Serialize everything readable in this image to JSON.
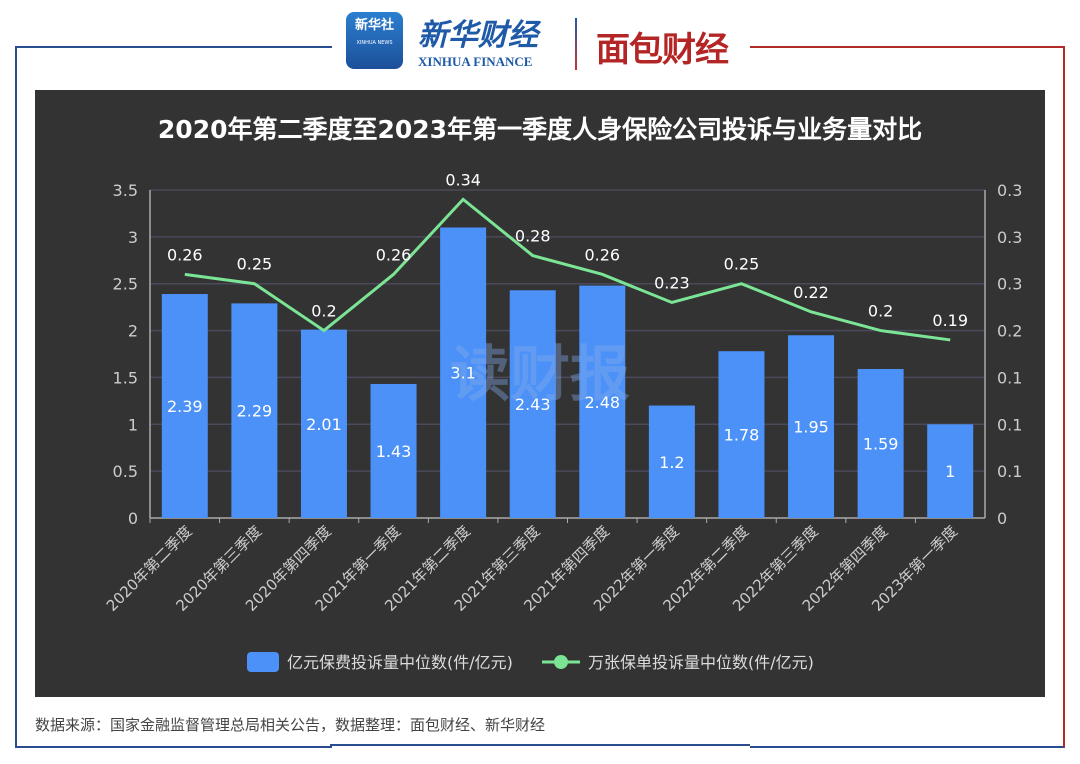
{
  "header": {
    "logo1_text": "新华社",
    "logo1_sub": "XINHUA NEWS",
    "logo2_text": "新华财经",
    "logo2_sub": "XINHUA FINANCE",
    "logo3_text": "面包财经"
  },
  "watermark": "读财报",
  "source": "数据来源：国家金融监督管理总局相关公告，数据整理：面包财经、新华财经",
  "chart_data": {
    "type": "bar",
    "title": "2020年第二季度至2023年第一季度人身保险公司投诉与业务量对比",
    "categories": [
      "2020年第二季度",
      "2020年第三季度",
      "2020年第四季度",
      "2021年第一季度",
      "2021年第二季度",
      "2021年第三季度",
      "2021年第四季度",
      "2022年第一季度",
      "2022年第二季度",
      "2022年第三季度",
      "2022年第四季度",
      "2023年第一季度"
    ],
    "series": [
      {
        "name": "亿元保费投诉量中位数(件/亿元)",
        "type": "bar",
        "axis": "left",
        "color": "#4b91f7",
        "values": [
          2.39,
          2.29,
          2.01,
          1.43,
          3.1,
          2.43,
          2.48,
          1.2,
          1.78,
          1.95,
          1.59,
          1
        ]
      },
      {
        "name": "万张保单投诉量中位数(件/亿元)",
        "type": "line",
        "axis": "right",
        "color": "#7be495",
        "values": [
          0.26,
          0.25,
          0.2,
          0.26,
          0.34,
          0.28,
          0.26,
          0.23,
          0.25,
          0.22,
          0.2,
          0.19
        ]
      }
    ],
    "y_left": {
      "ylim": [
        0,
        3.5
      ],
      "ticks": [
        "0",
        "0.5",
        "1",
        "1.5",
        "2",
        "2.5",
        "3",
        "3.5"
      ]
    },
    "y_right": {
      "ylim": [
        0,
        0.35
      ],
      "ticks": [
        "0",
        "0.1",
        "0.1",
        "0.1",
        "0.2",
        "0.3",
        "0.3",
        "0.3"
      ]
    },
    "legend_position": "bottom",
    "grid": true
  }
}
